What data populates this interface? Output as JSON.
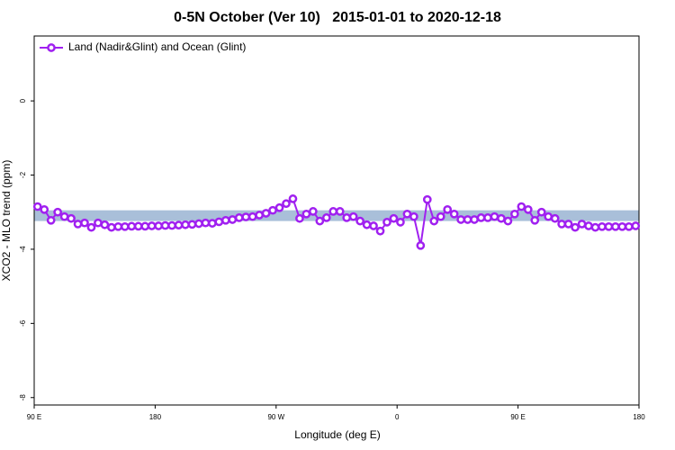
{
  "chart_data": {
    "type": "line",
    "title": "0-5N October (Ver 10)   2015-01-01 to 2020-12-18",
    "x_label": "Longitude (deg E)",
    "y_label": "XCO2 - MLO trend (ppm)",
    "legend_position": "top-left",
    "xlim": [
      90,
      540
    ],
    "ylim": [
      -8.2,
      1.75
    ],
    "xticks": [
      {
        "value": 90,
        "label": "90 E"
      },
      180,
      {
        "value": 270,
        "label": "90 W"
      },
      {
        "value": 360,
        "label": "0"
      },
      {
        "value": 450,
        "label": "90 E"
      },
      {
        "value": 540,
        "label": "180"
      }
    ],
    "yticks": [
      0,
      -2,
      -4,
      -6,
      -8
    ],
    "band": {
      "range": [
        -3.24,
        -2.95
      ],
      "color": "#a9bfd9"
    },
    "x": [
      92.5,
      97.5,
      102.5,
      107.5,
      112.5,
      117.5,
      122.5,
      127.5,
      132.5,
      137.5,
      142.5,
      147.5,
      152.5,
      157.5,
      162.5,
      167.5,
      172.5,
      177.5,
      182.5,
      187.5,
      192.5,
      197.5,
      202.5,
      207.5,
      212.5,
      217.5,
      222.5,
      227.5,
      232.5,
      237.5,
      242.5,
      247.5,
      252.5,
      257.5,
      262.5,
      267.5,
      272.5,
      277.5,
      282.5,
      287.5,
      292.5,
      297.5,
      302.5,
      307.5,
      312.5,
      317.5,
      322.5,
      327.5,
      332.5,
      337.5,
      342.5,
      347.5,
      352.5,
      357.5,
      362.5,
      367.5,
      372.5,
      377.5,
      382.5,
      387.5,
      392.5,
      397.5,
      402.5,
      407.5,
      412.5,
      417.5,
      422.5,
      427.5,
      432.5,
      437.5,
      442.5,
      447.5,
      452.5,
      457.5,
      462.5,
      467.5,
      472.5,
      477.5,
      482.5,
      487.5,
      492.5,
      497.5,
      502.5,
      507.5,
      512.5,
      517.5,
      522.5,
      527.5,
      532.5,
      537.5
    ],
    "series": [
      {
        "name": "Land (Nadir&Glint) and Ocean (Glint)",
        "color": "#a020f0",
        "values": [
          -2.85,
          -2.93,
          -3.22,
          -3.0,
          -3.12,
          -3.17,
          -3.32,
          -3.29,
          -3.41,
          -3.29,
          -3.34,
          -3.41,
          -3.39,
          -3.39,
          -3.38,
          -3.38,
          -3.38,
          -3.37,
          -3.37,
          -3.36,
          -3.36,
          -3.35,
          -3.34,
          -3.33,
          -3.31,
          -3.29,
          -3.3,
          -3.26,
          -3.22,
          -3.2,
          -3.15,
          -3.13,
          -3.12,
          -3.08,
          -3.03,
          -2.95,
          -2.88,
          -2.77,
          -2.64,
          -3.17,
          -3.05,
          -2.98,
          -3.24,
          -3.15,
          -2.98,
          -2.98,
          -3.15,
          -3.12,
          -3.24,
          -3.34,
          -3.37,
          -3.51,
          -3.27,
          -3.17,
          -3.27,
          -3.05,
          -3.12,
          -3.9,
          -2.66,
          -3.24,
          -3.12,
          -2.93,
          -3.05,
          -3.2,
          -3.2,
          -3.2,
          -3.15,
          -3.15,
          -3.12,
          -3.17,
          -3.24,
          -3.05,
          -2.85,
          -2.93,
          -3.22,
          -3.0,
          -3.12,
          -3.17,
          -3.32,
          -3.32,
          -3.41,
          -3.32,
          -3.37,
          -3.41,
          -3.39,
          -3.39,
          -3.39,
          -3.39,
          -3.39,
          -3.37
        ]
      }
    ]
  }
}
